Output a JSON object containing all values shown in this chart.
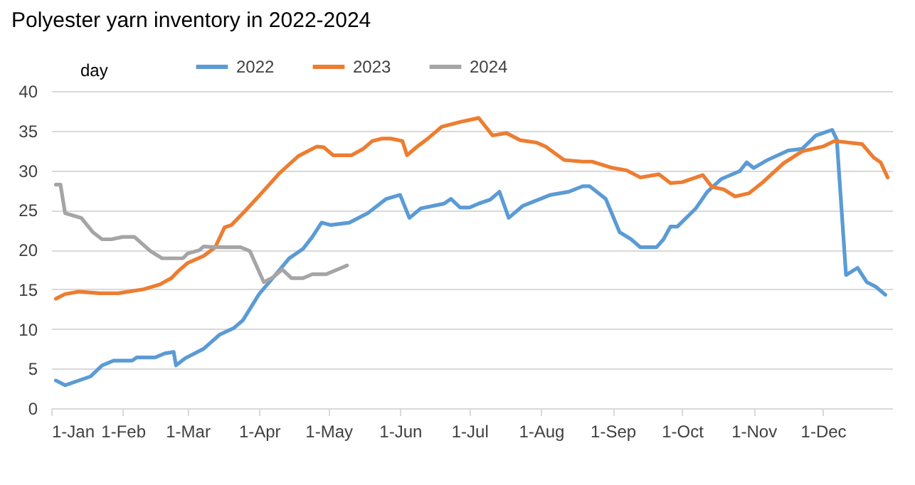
{
  "chart_data": {
    "type": "line",
    "title": "Polyester yarn inventory in 2022-2024",
    "ylabel": "day",
    "xlim": [
      "--01-01",
      "--12-31"
    ],
    "xticks": [
      {
        "value": "--01-01",
        "label": "1-Jan"
      },
      {
        "value": "--02-01",
        "label": "1-Feb"
      },
      {
        "value": "--03-01",
        "label": "1-Mar"
      },
      {
        "value": "--04-01",
        "label": "1-Apr"
      },
      {
        "value": "--05-01",
        "label": "1-May"
      },
      {
        "value": "--06-01",
        "label": "1-Jun"
      },
      {
        "value": "--07-01",
        "label": "1-Jul"
      },
      {
        "value": "--08-01",
        "label": "1-Aug"
      },
      {
        "value": "--09-01",
        "label": "1-Sep"
      },
      {
        "value": "--10-01",
        "label": "1-Oct"
      },
      {
        "value": "--11-01",
        "label": "1-Nov"
      },
      {
        "value": "--12-01",
        "label": "1-Dec"
      }
    ],
    "ylim": [
      0,
      40
    ],
    "yticks": [
      0,
      5,
      10,
      15,
      20,
      25,
      30,
      35,
      40
    ],
    "grid": "y",
    "legend": "top",
    "line_style": "solid",
    "marker": "none",
    "series": [
      {
        "name": "2022",
        "color": "#5b9bd5",
        "x": [
          "--01-03",
          "--01-07",
          "--01-12",
          "--01-18",
          "--01-23",
          "--01-28",
          "--02-05",
          "--02-07",
          "--02-15",
          "--02-19",
          "--02-23",
          "--02-24",
          "--02-28",
          "--03-08",
          "--03-15",
          "--03-21",
          "--03-25",
          "--04-01",
          "--04-08",
          "--04-14",
          "--04-20",
          "--04-24",
          "--04-28",
          "--05-02",
          "--05-10",
          "--05-18",
          "--05-26",
          "--06-01",
          "--06-05",
          "--06-10",
          "--06-20",
          "--06-23",
          "--06-27",
          "--07-01",
          "--07-05",
          "--07-10",
          "--07-14",
          "--07-18",
          "--07-24",
          "--08-05",
          "--08-13",
          "--08-19",
          "--08-22",
          "--08-29",
          "--09-04",
          "--09-09",
          "--09-13",
          "--09-20",
          "--09-23",
          "--09-26",
          "--09-29",
          "--10-07",
          "--10-12",
          "--10-18",
          "--10-26",
          "--10-29",
          "--11-01",
          "--11-07",
          "--11-16",
          "--11-22",
          "--11-28",
          "--12-05",
          "--12-07",
          "--12-11",
          "--12-16",
          "--12-20",
          "--12-24",
          "--12-28"
        ],
        "values": [
          3.5,
          2.9,
          3.4,
          4.0,
          5.4,
          6.0,
          6.0,
          6.4,
          6.4,
          6.9,
          7.1,
          5.4,
          6.3,
          7.5,
          9.3,
          10.1,
          11.1,
          14.4,
          16.8,
          18.9,
          20.1,
          21.6,
          23.4,
          23.1,
          23.4,
          24.6,
          26.4,
          26.9,
          24.0,
          25.2,
          25.8,
          26.4,
          25.3,
          25.3,
          25.8,
          26.3,
          27.3,
          24.0,
          25.5,
          26.9,
          27.3,
          28.0,
          28.0,
          26.4,
          22.2,
          21.3,
          20.3,
          20.3,
          21.3,
          22.9,
          22.9,
          25.2,
          27.3,
          28.9,
          29.9,
          31.0,
          30.3,
          31.3,
          32.5,
          32.7,
          34.4,
          35.1,
          33.9,
          16.8,
          17.7,
          15.9,
          15.3,
          14.3
        ]
      },
      {
        "name": "2023",
        "color": "#ed7d31",
        "x": [
          "--01-03",
          "--01-07",
          "--01-13",
          "--01-22",
          "--01-30",
          "--02-10",
          "--02-17",
          "--02-22",
          "--02-25",
          "--03-01",
          "--03-08",
          "--03-13",
          "--03-17",
          "--03-20",
          "--03-26",
          "--04-01",
          "--04-10",
          "--04-18",
          "--04-26",
          "--04-29",
          "--05-03",
          "--05-11",
          "--05-16",
          "--05-20",
          "--05-24",
          "--05-28",
          "--06-02",
          "--06-04",
          "--06-08",
          "--06-13",
          "--06-19",
          "--06-27",
          "--07-05",
          "--07-11",
          "--07-17",
          "--07-23",
          "--07-30",
          "--08-03",
          "--08-11",
          "--08-19",
          "--08-23",
          "--09-01",
          "--09-07",
          "--09-13",
          "--09-21",
          "--09-26",
          "--10-01",
          "--10-10",
          "--10-14",
          "--10-19",
          "--10-24",
          "--10-30",
          "--11-05",
          "--11-14",
          "--11-22",
          "--12-01",
          "--12-06",
          "--12-18",
          "--12-23",
          "--12-26",
          "--12-29"
        ],
        "values": [
          13.8,
          14.4,
          14.7,
          14.5,
          14.5,
          15.0,
          15.6,
          16.4,
          17.3,
          18.3,
          19.2,
          20.3,
          22.8,
          23.1,
          24.9,
          26.8,
          29.7,
          31.8,
          33.0,
          32.9,
          31.9,
          31.9,
          32.7,
          33.7,
          34.0,
          34.0,
          33.7,
          31.9,
          32.9,
          34.0,
          35.5,
          36.1,
          36.6,
          34.4,
          34.7,
          33.8,
          33.5,
          33.0,
          31.3,
          31.1,
          31.1,
          30.3,
          30.0,
          29.1,
          29.5,
          28.4,
          28.5,
          29.4,
          27.9,
          27.6,
          26.7,
          27.1,
          28.5,
          30.9,
          32.4,
          33.0,
          33.7,
          33.3,
          31.6,
          31.0,
          29.1
        ]
      },
      {
        "name": "2024",
        "color": "#a5a5a5",
        "x": [
          "--01-03",
          "--01-05",
          "--01-07",
          "--01-14",
          "--01-19",
          "--01-23",
          "--01-27",
          "--02-01",
          "--02-06",
          "--02-13",
          "--02-18",
          "--02-27",
          "--03-01",
          "--03-06",
          "--03-08",
          "--03-13",
          "--03-24",
          "--03-28",
          "--04-03",
          "--04-07",
          "--04-11",
          "--04-15",
          "--04-20",
          "--04-24",
          "--04-30",
          "--05-09"
        ],
        "values": [
          28.2,
          28.2,
          24.6,
          24.0,
          22.2,
          21.3,
          21.3,
          21.6,
          21.6,
          19.8,
          18.9,
          18.9,
          19.5,
          19.9,
          20.4,
          20.3,
          20.3,
          19.8,
          15.9,
          16.5,
          17.5,
          16.4,
          16.4,
          16.9,
          16.9,
          18.0
        ]
      }
    ]
  }
}
